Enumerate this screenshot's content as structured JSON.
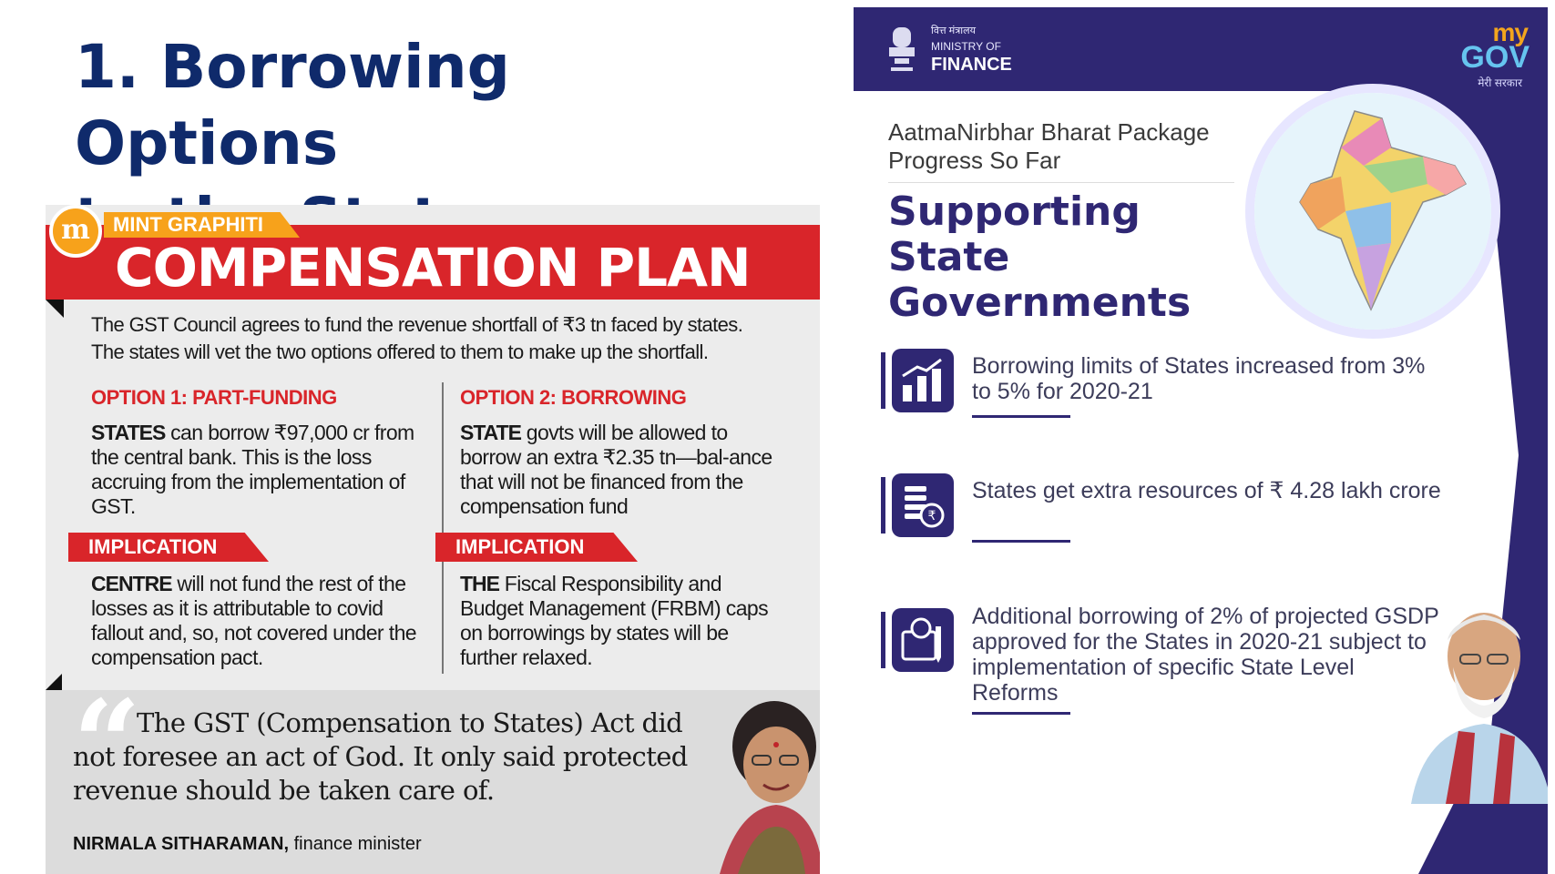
{
  "slide": {
    "title_line1": "1. Borrowing Options",
    "title_line2": "to the States"
  },
  "mint": {
    "logo_letter": "m",
    "brand": "MINT GRAPHITI",
    "headline": "COMPENSATION PLAN",
    "intro_line1": "The GST Council agrees to fund the revenue shortfall of ₹3 tn faced by states.",
    "intro_line2": "The states will vet the two options offered to them to make up the shortfall.",
    "option1": {
      "heading": "OPTION 1: PART-FUNDING",
      "lead": "STATES",
      "body": " can borrow ₹97,000 cr from the central bank. This is the loss accruing from the implementation of GST."
    },
    "option2": {
      "heading": "OPTION 2: BORROWING",
      "lead": "STATE",
      "body": " govts will be allowed to borrow an extra ₹2.35 tn—bal-ance that will not be financed from the compensation fund"
    },
    "implication_label": "IMPLICATION",
    "implication1": {
      "lead": "CENTRE",
      "body": " will not fund the rest of the losses as it is attributable to covid fallout and, so, not covered under the compensation pact."
    },
    "implication2": {
      "lead": "THE",
      "body": " Fiscal Responsibility and Budget Management (FRBM) caps on borrowings by states will be further relaxed."
    },
    "quote": {
      "mark": "“",
      "text": "The GST (Compensation to States) Act did not foresee an act of God. It only said protected revenue should be taken care of.",
      "author_name": "NIRMALA SITHARAMAN,",
      "author_role": " finance minister"
    },
    "colors": {
      "red": "#d9252a",
      "orange": "#f7a21b"
    }
  },
  "mof": {
    "hindi_line": "वित्त मंत्रालय",
    "ministry_line": "MINISTRY OF",
    "finance_line": "FINANCE",
    "mygov_my": "my",
    "mygov_gov": "GOV",
    "mygov_tag": "मेरी सरकार",
    "kicker": "AatmaNirbhar Bharat Package Progress So Far",
    "heading": "Supporting State Governments",
    "items": [
      {
        "icon": "bar-chart-icon",
        "text": "Borrowing limits of States increased from 3% to 5% for 2020-21"
      },
      {
        "icon": "rupee-coins-icon",
        "text": "States get extra resources of ₹ 4.28 lakh crore"
      },
      {
        "icon": "document-rupee-icon",
        "text": "Additional borrowing of 2% of projected GSDP approved for the States in 2020-21 subject to implementation of specific State Level Reforms"
      }
    ],
    "colors": {
      "navy": "#2f2773",
      "light_blue": "#66c4ef",
      "accent_orange": "#f3a51d"
    }
  }
}
